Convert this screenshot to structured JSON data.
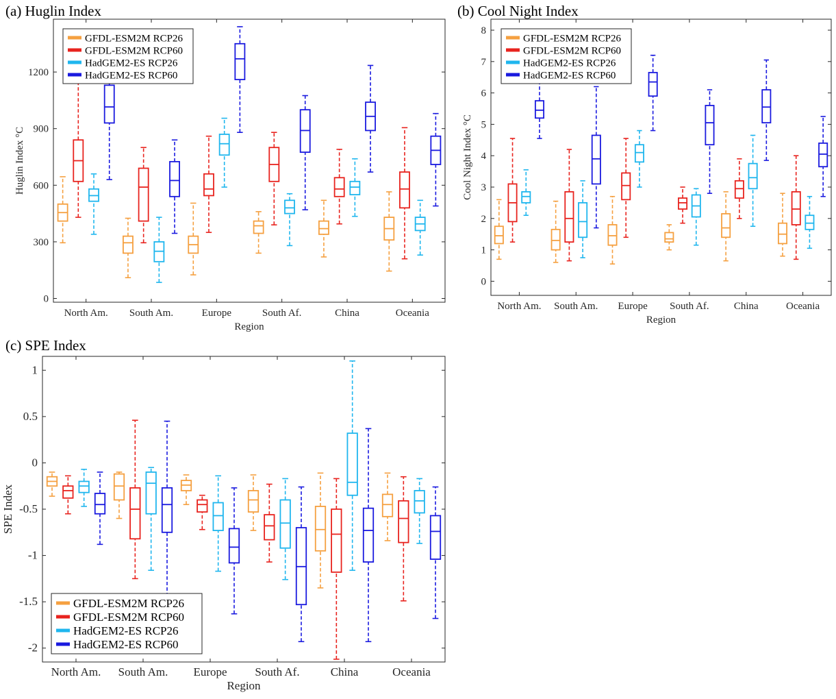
{
  "chart_data": [
    {
      "panel": "(a) Huglin Index",
      "type": "box",
      "xlabel": "Region",
      "ylabel": "Huglin Index °C",
      "ylim": [
        -20,
        1480
      ],
      "yticks": [
        0,
        300,
        600,
        900,
        1200
      ],
      "ytick_labels": [
        "0",
        "300",
        "600",
        "900",
        "1200"
      ],
      "categories": [
        "North Am.",
        "South Am.",
        "Europe",
        "South Af.",
        "China",
        "Oceania"
      ],
      "legend_position": "top-left",
      "series": [
        {
          "name": "GFDL-ESM2M RCP26",
          "color": "#f5a040",
          "boxes": [
            [
              295,
              410,
              455,
              500,
              645
            ],
            [
              110,
              240,
              295,
              330,
              425
            ],
            [
              125,
              240,
              285,
              330,
              505
            ],
            [
              240,
              345,
              385,
              410,
              460
            ],
            [
              220,
              340,
              370,
              410,
              520
            ],
            [
              145,
              310,
              370,
              430,
              565
            ]
          ]
        },
        {
          "name": "GFDL-ESM2M RCP60",
          "color": "#e8231e",
          "boxes": [
            [
              430,
              620,
              730,
              840,
              1165
            ],
            [
              295,
              410,
              590,
              690,
              800
            ],
            [
              350,
              545,
              580,
              660,
              860
            ],
            [
              390,
              620,
              710,
              800,
              880
            ],
            [
              395,
              540,
              580,
              640,
              790
            ],
            [
              210,
              480,
              580,
              670,
              905
            ]
          ]
        },
        {
          "name": "HadGEM2-ES RCP26",
          "color": "#1fb6ee",
          "boxes": [
            [
              340,
              515,
              545,
              580,
              660
            ],
            [
              85,
              195,
              250,
              300,
              430
            ],
            [
              590,
              760,
              820,
              870,
              955
            ],
            [
              280,
              450,
              480,
              520,
              555
            ],
            [
              435,
              550,
              590,
              620,
              740
            ],
            [
              230,
              360,
              395,
              430,
              520
            ]
          ]
        },
        {
          "name": "HadGEM2-ES RCP60",
          "color": "#1a1adf",
          "boxes": [
            [
              630,
              930,
              1015,
              1130,
              1220
            ],
            [
              345,
              540,
              625,
              725,
              840
            ],
            [
              880,
              1160,
              1270,
              1350,
              1440
            ],
            [
              470,
              775,
              890,
              1000,
              1075
            ],
            [
              670,
              890,
              965,
              1040,
              1235
            ],
            [
              490,
              710,
              785,
              860,
              980
            ]
          ]
        }
      ]
    },
    {
      "panel": "(b) Cool Night Index",
      "type": "box",
      "xlabel": "Region",
      "ylabel": "Cool Night Index °C",
      "ylim": [
        -0.45,
        8.35
      ],
      "yticks": [
        0,
        1,
        2,
        3,
        4,
        5,
        6,
        7,
        8
      ],
      "ytick_labels": [
        "0",
        "1",
        "2",
        "3",
        "4",
        "5",
        "6",
        "7",
        "8"
      ],
      "categories": [
        "North Am.",
        "South Am.",
        "Europe",
        "South Af.",
        "China",
        "Oceania"
      ],
      "legend_position": "top-left",
      "series": [
        {
          "name": "GFDL-ESM2M RCP26",
          "color": "#f5a040",
          "boxes": [
            [
              0.7,
              1.2,
              1.45,
              1.75,
              2.6
            ],
            [
              0.6,
              1.0,
              1.3,
              1.65,
              2.55
            ],
            [
              0.55,
              1.15,
              1.45,
              1.8,
              2.7
            ],
            [
              1.0,
              1.25,
              1.35,
              1.55,
              1.8
            ],
            [
              0.65,
              1.4,
              1.7,
              2.15,
              2.85
            ],
            [
              0.8,
              1.2,
              1.5,
              1.85,
              2.8
            ]
          ]
        },
        {
          "name": "GFDL-ESM2M RCP60",
          "color": "#e8231e",
          "boxes": [
            [
              1.25,
              1.9,
              2.5,
              3.1,
              4.55
            ],
            [
              0.65,
              1.25,
              2.0,
              2.85,
              4.2
            ],
            [
              1.4,
              2.6,
              3.05,
              3.45,
              4.55
            ],
            [
              1.85,
              2.3,
              2.5,
              2.65,
              3.0
            ],
            [
              2.0,
              2.65,
              2.95,
              3.2,
              3.9
            ],
            [
              0.7,
              1.8,
              2.3,
              2.85,
              4.0
            ]
          ]
        },
        {
          "name": "HadGEM2-ES RCP26",
          "color": "#1fb6ee",
          "boxes": [
            [
              2.1,
              2.5,
              2.7,
              2.85,
              3.55
            ],
            [
              0.75,
              1.4,
              1.9,
              2.5,
              3.2
            ],
            [
              3.0,
              3.8,
              4.1,
              4.35,
              4.8
            ],
            [
              1.15,
              2.05,
              2.4,
              2.75,
              2.95
            ],
            [
              1.75,
              2.95,
              3.3,
              3.75,
              4.65
            ],
            [
              1.05,
              1.65,
              1.85,
              2.1,
              2.7
            ]
          ]
        },
        {
          "name": "HadGEM2-ES RCP60",
          "color": "#1a1adf",
          "boxes": [
            [
              4.55,
              5.2,
              5.45,
              5.75,
              6.6
            ],
            [
              1.7,
              3.1,
              3.9,
              4.65,
              6.2
            ],
            [
              4.8,
              5.9,
              6.35,
              6.65,
              7.2
            ],
            [
              2.8,
              4.35,
              5.05,
              5.6,
              6.1
            ],
            [
              3.85,
              5.05,
              5.55,
              6.1,
              7.05
            ],
            [
              2.7,
              3.65,
              4.05,
              4.4,
              5.25
            ]
          ]
        }
      ]
    },
    {
      "panel": "(c) SPE Index",
      "type": "box",
      "xlabel": "Region",
      "ylabel": "SPE Index",
      "ylim": [
        -2.15,
        1.15
      ],
      "yticks": [
        1,
        0.5,
        0,
        -0.5,
        -1,
        -1.5,
        -2
      ],
      "ytick_labels": [
        "1",
        "0.5",
        "0",
        "-0.5",
        "-1",
        "-1.5",
        "-2"
      ],
      "categories": [
        "North Am.",
        "South Am.",
        "Europe",
        "South Af.",
        "China",
        "Oceania"
      ],
      "legend_position": "bottom-left",
      "series": [
        {
          "name": "GFDL-ESM2M RCP26",
          "color": "#f5a040",
          "boxes": [
            [
              -0.36,
              -0.25,
              -0.2,
              -0.15,
              -0.1
            ],
            [
              -0.6,
              -0.4,
              -0.25,
              -0.12,
              -0.1
            ],
            [
              -0.45,
              -0.3,
              -0.24,
              -0.19,
              -0.13
            ],
            [
              -0.73,
              -0.53,
              -0.4,
              -0.3,
              -0.13
            ],
            [
              -1.35,
              -0.95,
              -0.72,
              -0.47,
              -0.11
            ],
            [
              -0.84,
              -0.58,
              -0.45,
              -0.34,
              -0.11
            ]
          ]
        },
        {
          "name": "GFDL-ESM2M RCP60",
          "color": "#e8231e",
          "boxes": [
            [
              -0.55,
              -0.38,
              -0.3,
              -0.25,
              -0.14
            ],
            [
              -1.25,
              -0.82,
              -0.5,
              -0.27,
              0.46
            ],
            [
              -0.72,
              -0.53,
              -0.45,
              -0.4,
              -0.35
            ],
            [
              -1.07,
              -0.83,
              -0.68,
              -0.56,
              -0.23
            ],
            [
              -2.12,
              -1.18,
              -0.77,
              -0.5,
              -0.17
            ],
            [
              -1.49,
              -0.86,
              -0.6,
              -0.41,
              -0.15
            ]
          ]
        },
        {
          "name": "HadGEM2-ES RCP26",
          "color": "#1fb6ee",
          "boxes": [
            [
              -0.47,
              -0.32,
              -0.25,
              -0.2,
              -0.07
            ],
            [
              -1.16,
              -0.55,
              -0.22,
              -0.1,
              -0.05
            ],
            [
              -1.17,
              -0.73,
              -0.57,
              -0.43,
              -0.14
            ],
            [
              -1.26,
              -0.92,
              -0.65,
              -0.4,
              -0.17
            ],
            [
              -1.16,
              -0.35,
              -0.21,
              0.32,
              1.1
            ],
            [
              -0.87,
              -0.54,
              -0.41,
              -0.3,
              -0.17
            ]
          ]
        },
        {
          "name": "HadGEM2-ES RCP60",
          "color": "#1a1adf",
          "boxes": [
            [
              -0.88,
              -0.55,
              -0.45,
              -0.33,
              -0.1
            ],
            [
              -1.44,
              -0.75,
              -0.45,
              -0.27,
              0.45
            ],
            [
              -1.63,
              -1.08,
              -0.91,
              -0.71,
              -0.27
            ],
            [
              -1.93,
              -1.53,
              -1.12,
              -0.7,
              -0.26
            ],
            [
              -1.93,
              -1.07,
              -0.73,
              -0.49,
              0.37
            ],
            [
              -1.68,
              -1.04,
              -0.74,
              -0.57,
              -0.26
            ]
          ]
        }
      ]
    }
  ]
}
